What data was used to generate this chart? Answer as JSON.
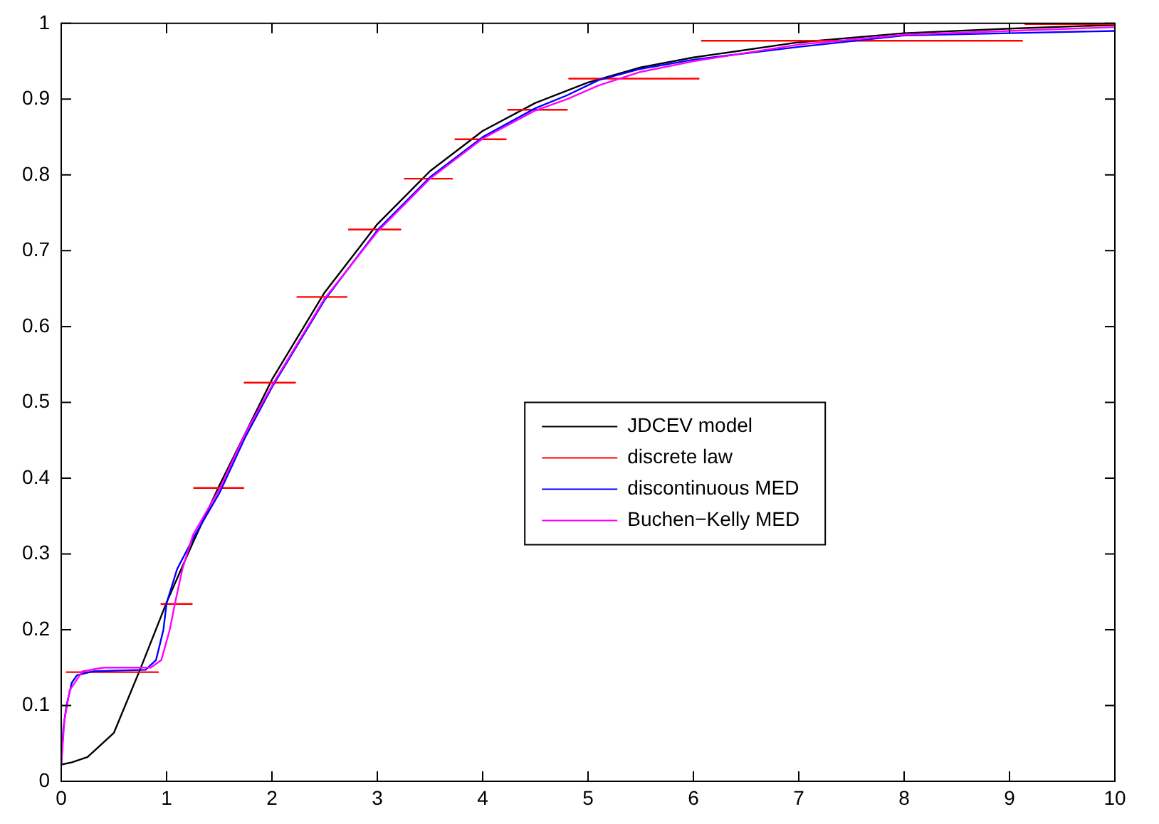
{
  "chart_data": {
    "type": "line",
    "xlim": [
      0,
      10
    ],
    "xticks": [
      0,
      1,
      2,
      3,
      4,
      5,
      6,
      7,
      8,
      9,
      10
    ],
    "ylim": [
      0,
      1
    ],
    "yticks": [
      0,
      0.1,
      0.2,
      0.3,
      0.4,
      0.5,
      0.6,
      0.7,
      0.8,
      0.9,
      1
    ],
    "grid": false,
    "legend": "center right",
    "marker": "none",
    "line_style": "solid",
    "series": [
      {
        "name": "JDCEV model",
        "color": "#000000",
        "x": [
          0,
          0.1,
          0.25,
          0.5,
          0.75,
          1,
          1.25,
          1.5,
          1.75,
          2,
          2.5,
          3,
          3.5,
          4,
          4.5,
          5,
          5.5,
          6,
          7,
          8,
          9,
          10
        ],
        "values": [
          0.022,
          0.025,
          0.032,
          0.064,
          0.148,
          0.236,
          0.315,
          0.39,
          0.46,
          0.53,
          0.645,
          0.735,
          0.805,
          0.858,
          0.895,
          0.922,
          0.942,
          0.955,
          0.975,
          0.987,
          0.993,
          0.998
        ]
      },
      {
        "name": "discrete law",
        "color": "#ff0000",
        "x": [
          0.05,
          0.92,
          0.935,
          0.95,
          1.24,
          1.25,
          1.26,
          1.73,
          1.735,
          1.74,
          2.22,
          2.23,
          2.24,
          2.71,
          2.72,
          2.73,
          3.22,
          3.24,
          3.26,
          3.71,
          3.725,
          3.74,
          4.22,
          4.23,
          4.24,
          4.8,
          4.81,
          4.82,
          6.05,
          6.065,
          6.08,
          9.12,
          9.135,
          9.15,
          10
        ],
        "values": [
          0.144,
          0.144,
          null,
          0.234,
          0.234,
          null,
          0.387,
          0.387,
          null,
          0.526,
          0.526,
          null,
          0.639,
          0.639,
          null,
          0.728,
          0.728,
          null,
          0.795,
          0.795,
          null,
          0.847,
          0.847,
          null,
          0.886,
          0.886,
          null,
          0.927,
          0.927,
          null,
          0.977,
          0.977,
          null,
          0.999,
          0.999
        ]
      },
      {
        "name": "discontinuous MED",
        "color": "#0000ff",
        "x": [
          0,
          0.02,
          0.05,
          0.1,
          0.15,
          0.3,
          0.5,
          0.8,
          0.9,
          0.97,
          1,
          1.1,
          1.25,
          1.5,
          1.75,
          2,
          2.5,
          3,
          3.5,
          4,
          4.5,
          4.8,
          5.1,
          5.5,
          6,
          7,
          8,
          9,
          10
        ],
        "values": [
          0.02,
          0.07,
          0.1,
          0.13,
          0.14,
          0.145,
          0.146,
          0.147,
          0.16,
          0.2,
          0.235,
          0.28,
          0.32,
          0.38,
          0.455,
          0.52,
          0.635,
          0.727,
          0.797,
          0.85,
          0.888,
          0.905,
          0.925,
          0.94,
          0.952,
          0.969,
          0.984,
          0.987,
          0.99
        ]
      },
      {
        "name": "Buchen−Kelly MED",
        "color": "#ff00ff",
        "x": [
          0,
          0.03,
          0.08,
          0.2,
          0.4,
          0.85,
          0.95,
          1.03,
          1.08,
          1.15,
          1.25,
          1.5,
          1.75,
          2,
          2.5,
          3,
          3.5,
          4,
          4.5,
          4.8,
          5.1,
          5.5,
          6,
          7,
          8,
          9,
          10
        ],
        "values": [
          0.02,
          0.08,
          0.12,
          0.145,
          0.15,
          0.15,
          0.16,
          0.2,
          0.235,
          0.28,
          0.325,
          0.385,
          0.46,
          0.522,
          0.637,
          0.725,
          0.795,
          0.848,
          0.885,
          0.9,
          0.918,
          0.936,
          0.95,
          0.972,
          0.985,
          0.99,
          0.995
        ]
      }
    ]
  }
}
